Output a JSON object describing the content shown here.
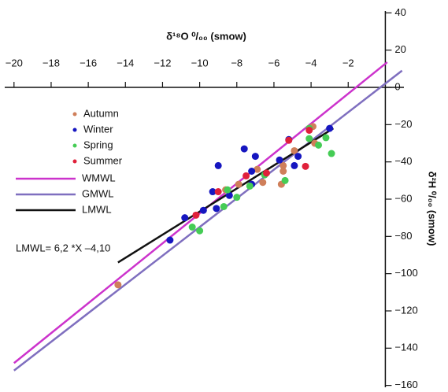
{
  "chart_data": {
    "type": "scatter",
    "title": "δ¹⁸O ⁰/₀₀ (smow)",
    "y_label": "δ²H ⁰/₀₀ (smow)",
    "annotation": "LMWL= 6,2 *X –4,10",
    "xlim": [
      -20.5,
      1
    ],
    "ylim": [
      -161,
      41
    ],
    "xticks": [
      {
        "value": -20,
        "label": "−20"
      },
      {
        "value": -18,
        "label": "−18"
      },
      {
        "value": -16,
        "label": "−16"
      },
      {
        "value": -14,
        "label": "−14"
      },
      {
        "value": -12,
        "label": "−12"
      },
      {
        "value": -10,
        "label": "−10"
      },
      {
        "value": -8,
        "label": "−8"
      },
      {
        "value": -6,
        "label": "−6"
      },
      {
        "value": -4,
        "label": "−4"
      },
      {
        "value": -2,
        "label": "−2"
      }
    ],
    "yticks": [
      40,
      20,
      0,
      {
        "value": -20,
        "label": "−20"
      },
      {
        "value": -40,
        "label": "−40"
      },
      {
        "value": -60,
        "label": "−60"
      },
      {
        "value": -80,
        "label": "−80"
      },
      {
        "value": -100,
        "label": "−100"
      },
      {
        "value": -120,
        "label": "−120"
      },
      {
        "value": -140,
        "label": "−140"
      },
      {
        "value": -160,
        "label": "−160"
      }
    ],
    "legend": "left",
    "series": [
      {
        "name": "Autumn",
        "color": "#cf7f5a",
        "mode": "markers",
        "x": [
          -14.4,
          -8.6,
          -7.9,
          -6.6,
          -6.9,
          -5.6,
          -5.5,
          -5.5,
          -4.9,
          -3.8,
          -3.9
        ],
        "values": [
          -106,
          -55,
          -52,
          -51,
          -44,
          -52,
          -45,
          -42,
          -34,
          -30,
          -21
        ]
      },
      {
        "name": "Winter",
        "color": "#1616c0",
        "mode": "markers",
        "x": [
          -11.6,
          -10.8,
          -9.8,
          -9.3,
          -9.1,
          -9.0,
          -8.4,
          -7.6,
          -7.2,
          -7.0,
          -7.2,
          -5.7,
          -4.9,
          -4.7,
          -5.2,
          -3.0
        ],
        "values": [
          -82,
          -70,
          -66,
          -56,
          -65,
          -42,
          -58,
          -33,
          -45,
          -37,
          -52,
          -39,
          -42,
          -37,
          -28,
          -22
        ]
      },
      {
        "name": "Spring",
        "color": "#45cc55",
        "mode": "markers",
        "x": [
          -10.4,
          -10.0,
          -8.7,
          -8.5,
          -8.0,
          -7.3,
          -6.5,
          -5.4,
          -4.1,
          -3.6,
          -3.2,
          -2.9,
          -4.1
        ],
        "values": [
          -75,
          -77,
          -64,
          -55,
          -59,
          -53,
          -47,
          -50,
          -27.5,
          -31,
          -27,
          -35.5,
          -22
        ]
      },
      {
        "name": "Summer",
        "color": "#e0203a",
        "mode": "markers",
        "x": [
          -10.2,
          -9.0,
          -7.5,
          -6.4,
          -5.2,
          -4.3,
          -4.1
        ],
        "values": [
          -68.6,
          -56,
          -47.5,
          -46,
          -28.4,
          -42.4,
          -23
        ]
      },
      {
        "name": "WMWL",
        "color": "#cc33cc",
        "mode": "lines",
        "x": [
          -20,
          0.1
        ],
        "values": [
          -148,
          13.5
        ]
      },
      {
        "name": "GMWL",
        "color": "#7f6fbf",
        "mode": "lines",
        "x": [
          -20,
          0.9
        ],
        "values": [
          -152,
          9
        ]
      },
      {
        "name": "LMWL",
        "color": "#111111",
        "mode": "lines",
        "x": [
          -14.4,
          -2.8
        ],
        "values": [
          -94,
          -22
        ]
      }
    ]
  }
}
